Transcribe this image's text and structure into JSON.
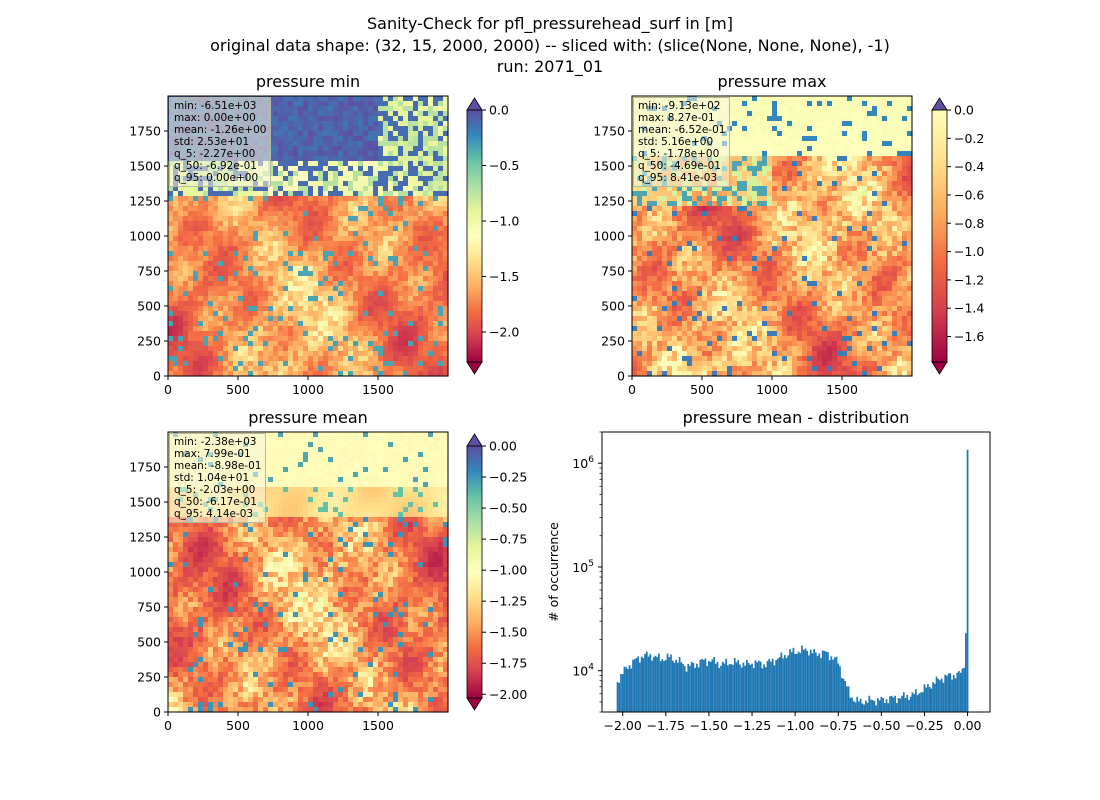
{
  "figure": {
    "title_lines": [
      "Sanity-Check for pfl_pressurehead_surf in [m]",
      "original data shape: (32, 15, 2000, 2000) -- sliced with: (slice(None, None, None), -1)",
      "run: 2071_01"
    ]
  },
  "chart_data": [
    {
      "type": "heatmap",
      "title": "pressure min",
      "colormap": "Spectral",
      "xlim": [
        0,
        2000
      ],
      "ylim": [
        0,
        2000
      ],
      "xticks": [
        "0",
        "500",
        "1000",
        "1500"
      ],
      "yticks": [
        "0",
        "250",
        "500",
        "750",
        "1000",
        "1250",
        "1500",
        "1750"
      ],
      "clim": [
        -2.27,
        0.0
      ],
      "colorbar_ticks": [
        "0.0",
        "−0.5",
        "−1.0",
        "−1.5",
        "−2.0"
      ],
      "colorbar_tick_values": [
        0.0,
        -0.5,
        -1.0,
        -1.5,
        -2.0
      ],
      "colorbar_extend": "both",
      "extend_colors": {
        "over": "#5e4fa2",
        "under": "#9e0142"
      },
      "stats": [
        "min: -6.51e+03",
        "max: 0.00e+00",
        "mean: -1.26e+00",
        "std: 2.53e+01",
        "q_5: -2.27e+00",
        "q_50: -6.92e-01",
        "q_95: 0.00e+00"
      ]
    },
    {
      "type": "heatmap",
      "title": "pressure max",
      "colormap": "Spectral",
      "xlim": [
        0,
        2000
      ],
      "ylim": [
        0,
        2000
      ],
      "xticks": [
        "0",
        "500",
        "1000",
        "1500"
      ],
      "yticks": [
        "0",
        "250",
        "500",
        "750",
        "1000",
        "1250",
        "1500",
        "1750"
      ],
      "clim": [
        -1.78,
        0.0
      ],
      "colorbar_ticks": [
        "0.0",
        "−0.2",
        "−0.4",
        "−0.6",
        "−0.8",
        "−1.0",
        "−1.2",
        "−1.4",
        "−1.6"
      ],
      "colorbar_tick_values": [
        0.0,
        -0.2,
        -0.4,
        -0.6,
        -0.8,
        -1.0,
        -1.2,
        -1.4,
        -1.6
      ],
      "colorbar_extend": "both",
      "extend_colors": {
        "over": "#5e4fa2",
        "under": "#9e0142"
      },
      "stats": [
        "min: -9.13e+02",
        "max: 8.27e-01",
        "mean: -6.52e-01",
        "std: 5.16e+00",
        "q_5: -1.78e+00",
        "q_50: -4.69e-01",
        "q_95: 8.41e-03"
      ]
    },
    {
      "type": "heatmap",
      "title": "pressure mean",
      "colormap": "Spectral",
      "xlim": [
        0,
        2000
      ],
      "ylim": [
        0,
        2000
      ],
      "xticks": [
        "0",
        "500",
        "1000",
        "1500"
      ],
      "yticks": [
        "0",
        "250",
        "500",
        "750",
        "1000",
        "1250",
        "1500",
        "1750"
      ],
      "clim": [
        -2.03,
        0.0
      ],
      "colorbar_ticks": [
        "0.00",
        "−0.25",
        "−0.50",
        "−0.75",
        "−1.00",
        "−1.25",
        "−1.50",
        "−1.75",
        "−2.00"
      ],
      "colorbar_tick_values": [
        0.0,
        -0.25,
        -0.5,
        -0.75,
        -1.0,
        -1.25,
        -1.5,
        -1.75,
        -2.0
      ],
      "colorbar_extend": "both",
      "extend_colors": {
        "over": "#5e4fa2",
        "under": "#9e0142"
      },
      "stats": [
        "min: -2.38e+03",
        "max: 7.99e-01",
        "mean: -8.98e-01",
        "std: 1.04e+01",
        "q_5: -2.03e+00",
        "q_50: -6.17e-01",
        "q_95: 4.14e-03"
      ]
    },
    {
      "type": "bar",
      "title": "pressure mean - distribution",
      "ylabel": "# of occurrence",
      "yscale": "log",
      "xlim": [
        -2.12,
        0.13
      ],
      "ylim": [
        4000,
        2000000
      ],
      "xticks": [
        "−2.00",
        "−1.75",
        "−1.50",
        "−1.25",
        "−1.00",
        "−0.75",
        "−0.50",
        "−0.25",
        "0.00"
      ],
      "xtick_values": [
        -2.0,
        -1.75,
        -1.5,
        -1.25,
        -1.0,
        -0.75,
        -0.5,
        -0.25,
        0.0
      ],
      "yticks": [
        "10^4",
        "10^5",
        "10^6"
      ],
      "ytick_values": [
        10000,
        100000,
        1000000
      ],
      "bar_color": "#1f77b4",
      "bin_width": 0.01,
      "profile_x": [
        -2.03,
        -2.02,
        -2.0,
        -1.97,
        -1.93,
        -1.88,
        -1.83,
        -1.78,
        -1.73,
        -1.68,
        -1.63,
        -1.58,
        -1.53,
        -1.48,
        -1.43,
        -1.38,
        -1.33,
        -1.28,
        -1.23,
        -1.18,
        -1.13,
        -1.08,
        -1.03,
        -0.98,
        -0.93,
        -0.88,
        -0.83,
        -0.78,
        -0.75,
        -0.73,
        -0.7,
        -0.68,
        -0.65,
        -0.62,
        -0.6,
        -0.55,
        -0.5,
        -0.45,
        -0.4,
        -0.35,
        -0.3,
        -0.25,
        -0.2,
        -0.15,
        -0.1,
        -0.05,
        -0.03,
        -0.02,
        -0.01,
        0.0
      ],
      "profile_y": [
        8000,
        8500,
        9500,
        11000,
        12500,
        14000,
        14000,
        13000,
        13500,
        12500,
        11000,
        11500,
        12500,
        12500,
        11500,
        12000,
        12000,
        11500,
        12000,
        11500,
        12500,
        13500,
        15000,
        15500,
        16000,
        14500,
        15000,
        13500,
        12000,
        9500,
        7000,
        5800,
        5200,
        5000,
        5100,
        5200,
        5200,
        5400,
        5500,
        5700,
        6000,
        6700,
        7600,
        8500,
        9000,
        9200,
        10000,
        12000,
        23000,
        1350000
      ]
    }
  ]
}
